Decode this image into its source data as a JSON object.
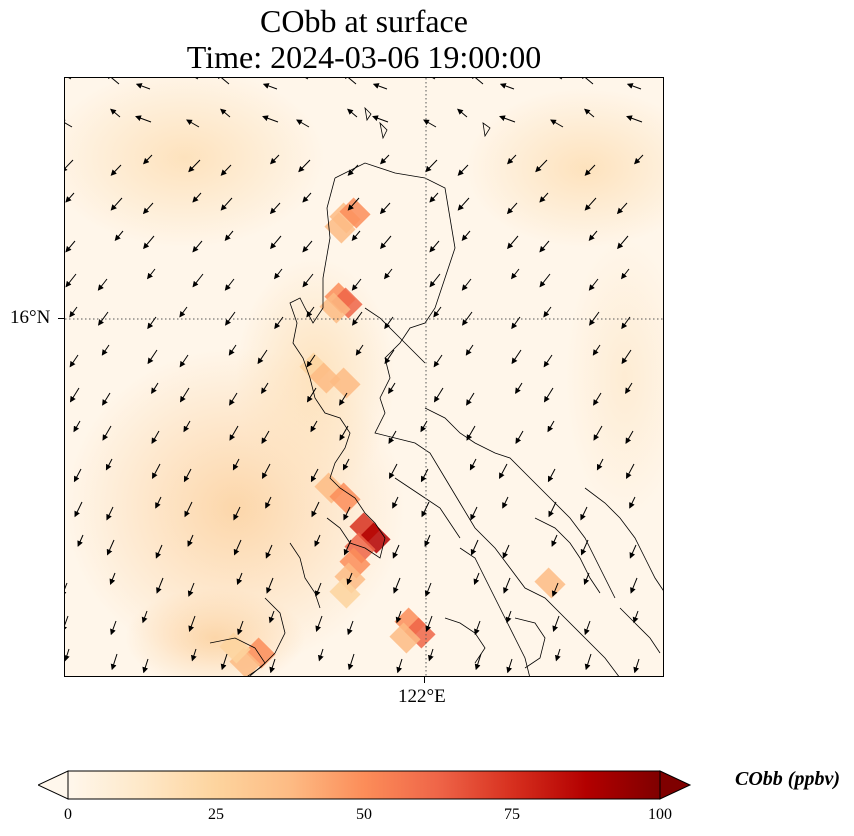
{
  "title": {
    "line1": "CObb at surface",
    "line2": "Time: 2024-03-06 19:00:00"
  },
  "axes": {
    "lat_label": "16°N",
    "lon_label": "122°E"
  },
  "colorbar": {
    "label": "CObb (ppbv)",
    "ticks": [
      "0",
      "25",
      "50",
      "75",
      "100"
    ],
    "range": [
      0,
      100
    ],
    "extend": "both",
    "colormap": "OrRd",
    "colors": [
      "#fff7ec",
      "#fee8c8",
      "#fdd49e",
      "#fdbb84",
      "#fc8d59",
      "#ef6548",
      "#d7301f",
      "#b30000",
      "#7f0000"
    ]
  },
  "map": {
    "gridlines": "dotted",
    "features": [
      "coastlines",
      "wind-vectors"
    ],
    "region": "Luzon, Philippines"
  }
}
